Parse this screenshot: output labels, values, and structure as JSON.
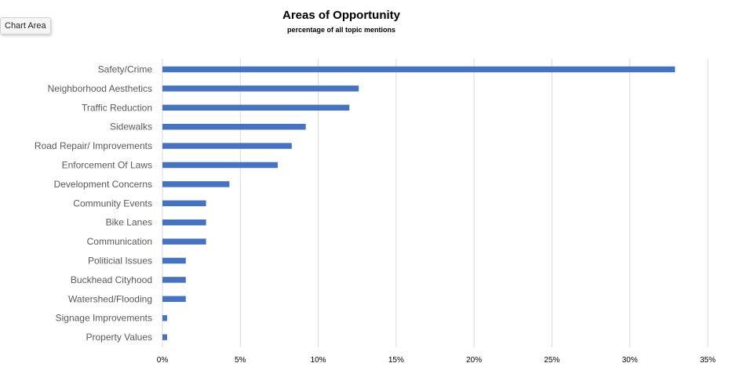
{
  "tooltip": "Chart Area",
  "colors": {
    "bar": "#4472c4",
    "gridline": "#d9d9d9",
    "category_text": "#595959"
  },
  "chart_data": {
    "type": "bar",
    "orientation": "horizontal",
    "title": "Areas of Opportunity",
    "subtitle": "percentage of all topic mentions",
    "xlabel": "",
    "ylabel": "",
    "xlim": [
      0,
      35
    ],
    "x_ticks": [
      "0%",
      "5%",
      "10%",
      "15%",
      "20%",
      "25%",
      "30%",
      "35%"
    ],
    "grid": "vertical",
    "legend": "none",
    "categories": [
      "Safety/Crime",
      "Neighborhood Aesthetics",
      "Traffic Reduction",
      "Sidewalks",
      "Road Repair/ Improvements",
      "Enforcement Of Laws",
      "Development Concerns",
      "Community Events",
      "Bike Lanes",
      "Communication",
      "Politicial Issues",
      "Buckhead Cityhood",
      "Watershed/Flooding",
      "Signage Improvements",
      "Property Values"
    ],
    "values": [
      32.9,
      12.6,
      12.0,
      9.2,
      8.3,
      7.4,
      4.3,
      2.8,
      2.8,
      2.8,
      1.5,
      1.5,
      1.5,
      0.3,
      0.3
    ]
  }
}
